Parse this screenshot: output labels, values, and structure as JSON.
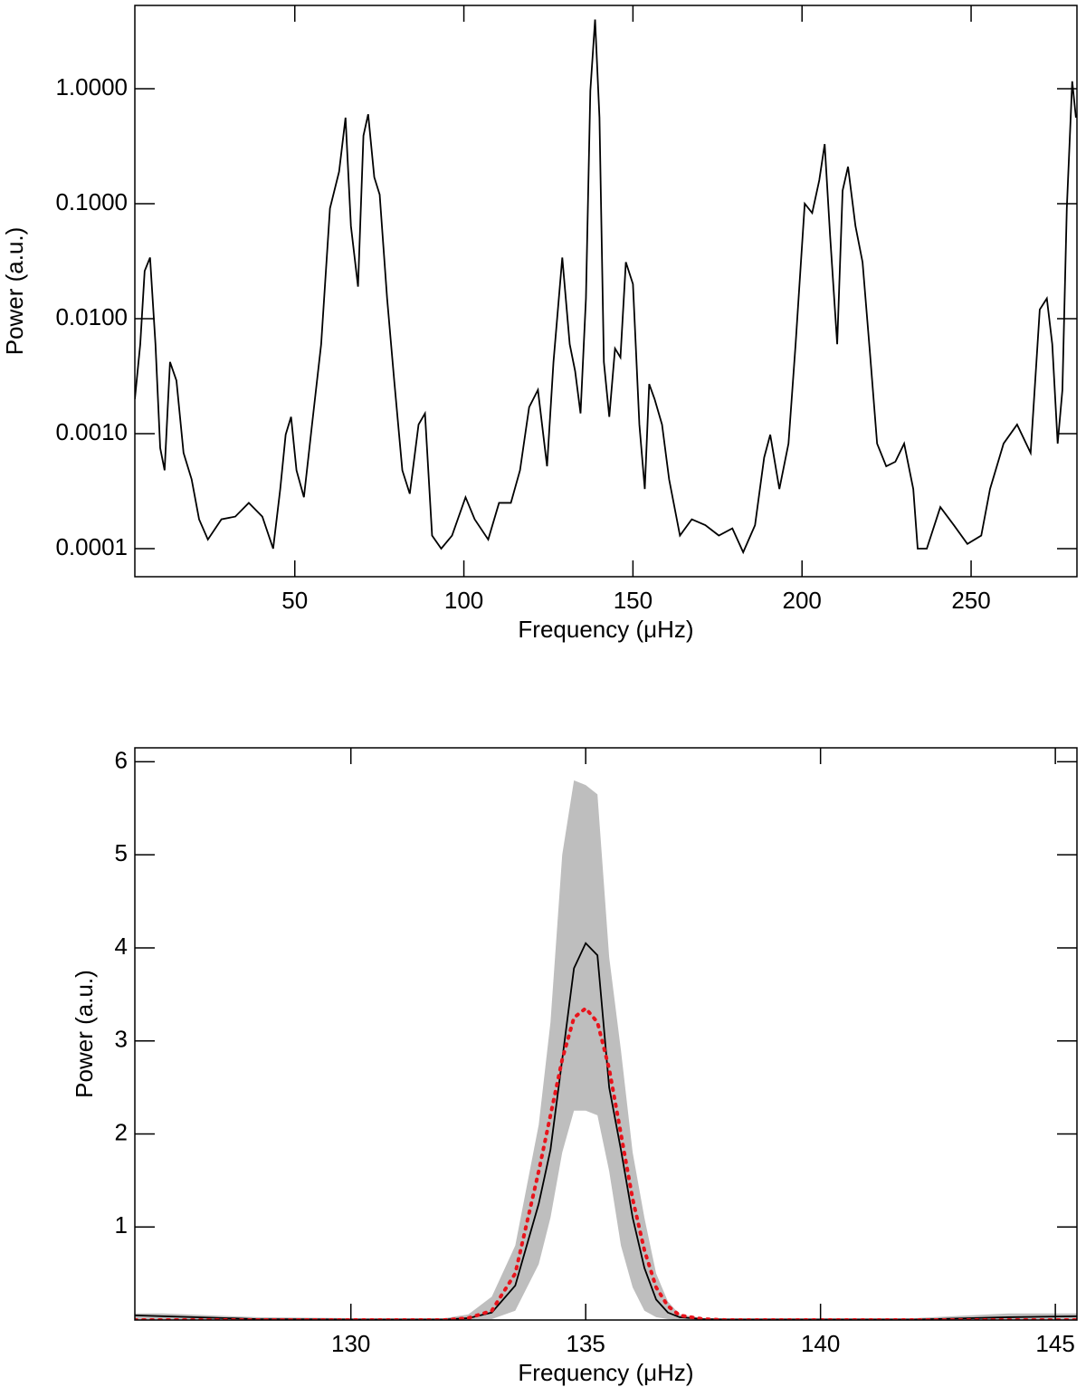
{
  "chart_data": [
    {
      "type": "line",
      "xlabel": "Frequency (μHz)",
      "ylabel": "Power (a.u.)",
      "ylog": true,
      "xlim": [
        2.7,
        281.3
      ],
      "ylim": [
        5.7e-05,
        5.3
      ],
      "xticks": [
        50,
        100,
        150,
        200,
        250
      ],
      "yticks": [
        0.0001,
        {
          "value": 0.001,
          "label": "0.0010"
        },
        {
          "value": 0.01,
          "label": "0.0100"
        },
        {
          "value": 0.1,
          "label": "0.1000"
        },
        {
          "value": 1,
          "label": "1.0000"
        }
      ],
      "x": [
        2.7,
        4.3,
        5.6,
        7.2,
        8.8,
        10.2,
        11.5,
        13.1,
        15,
        17.1,
        19.5,
        21.7,
        24.3,
        28.3,
        32.4,
        36.4,
        40.4,
        43.6,
        45.7,
        47.3,
        48.9,
        50.5,
        52.7,
        55.1,
        57.8,
        60.4,
        63.1,
        65,
        66.6,
        68.7,
        70.3,
        71.7,
        73.5,
        75.1,
        77.3,
        79.4,
        81.8,
        84,
        86.6,
        88.5,
        90.6,
        93.3,
        96.5,
        100.5,
        103.2,
        107.2,
        110.4,
        113.9,
        116.6,
        119.3,
        121.9,
        124.6,
        126.5,
        129.1,
        131.3,
        132.9,
        134.5,
        136.1,
        137.4,
        138.8,
        140.1,
        141.4,
        143,
        144.7,
        146.3,
        147.9,
        150,
        151.9,
        153.5,
        154.8,
        156.4,
        158.6,
        160.7,
        163.9,
        167.4,
        171.4,
        175.4,
        179.4,
        182.6,
        186.1,
        188.8,
        190.6,
        193.3,
        196,
        198.1,
        200.8,
        203,
        205.1,
        206.7,
        208.3,
        210.4,
        212,
        213.6,
        215.8,
        217.9,
        220.1,
        222.2,
        224.9,
        227.6,
        230.2,
        232.9,
        234.2,
        236.9,
        240.9,
        244.9,
        248.9,
        253,
        255.6,
        259.6,
        263.6,
        267.6,
        270.3,
        272.4,
        274,
        275.6,
        277,
        278.3,
        279.9,
        281
      ],
      "series": [
        {
          "color": "#000000",
          "values": [
            0.002,
            0.006,
            0.026,
            0.034,
            0.006,
            0.00075,
            0.00048,
            0.0042,
            0.0029,
            0.00068,
            0.0004,
            0.00018,
            0.00012,
            0.00018,
            0.00019,
            0.00025,
            0.00019,
            0.0001,
            0.00033,
            0.00098,
            0.0014,
            0.00048,
            0.00028,
            0.0012,
            0.006,
            0.091,
            0.19,
            0.56,
            0.064,
            0.019,
            0.39,
            0.6,
            0.17,
            0.12,
            0.015,
            0.0029,
            0.00048,
            0.0003,
            0.0012,
            0.0015,
            0.00013,
            0.0001,
            0.00013,
            0.00028,
            0.00018,
            0.00012,
            0.00025,
            0.00025,
            0.00048,
            0.0017,
            0.0024,
            0.00052,
            0.0042,
            0.034,
            0.006,
            0.0035,
            0.0015,
            0.015,
            0.96,
            4.0,
            0.56,
            0.0042,
            0.0014,
            0.0055,
            0.0046,
            0.031,
            0.02,
            0.0012,
            0.00033,
            0.0027,
            0.002,
            0.0012,
            0.0004,
            0.00013,
            0.00018,
            0.00016,
            0.00013,
            0.00015,
            9.3e-05,
            0.00016,
            0.00062,
            0.00098,
            0.00033,
            0.00082,
            0.006,
            0.1,
            0.083,
            0.16,
            0.33,
            0.053,
            0.006,
            0.13,
            0.21,
            0.064,
            0.031,
            0.005,
            0.00082,
            0.00052,
            0.00057,
            0.00082,
            0.00033,
            0.0001,
            0.0001,
            0.00023,
            0.00016,
            0.00011,
            0.00013,
            0.00033,
            0.00082,
            0.0012,
            0.00068,
            0.012,
            0.015,
            0.006,
            0.00082,
            0.0024,
            0.091,
            1.16,
            0.56
          ]
        }
      ]
    },
    {
      "type": "line",
      "xlabel": "Frequency (μHz)",
      "ylabel": "Power (a.u.)",
      "ylog": false,
      "xlim": [
        125.4,
        145.46
      ],
      "ylim": [
        0,
        6.15
      ],
      "xticks": [
        130,
        135,
        140,
        145
      ],
      "yticks": [
        1,
        2,
        3,
        4,
        5,
        6
      ],
      "x": [
        125.4,
        126,
        128,
        130,
        131,
        132,
        132.5,
        133,
        133.5,
        134,
        134.25,
        134.5,
        134.75,
        135,
        135.25,
        135.5,
        135.75,
        136,
        136.25,
        136.5,
        136.75,
        137,
        137.5,
        138,
        140,
        142,
        144,
        145.46
      ],
      "band": {
        "color": "#bebebe",
        "upper": [
          0.07,
          0.07,
          0.03,
          0.02,
          0.02,
          0.02,
          0.06,
          0.25,
          0.8,
          2.1,
          3.2,
          5.0,
          5.8,
          5.75,
          5.65,
          3.9,
          2.9,
          1.8,
          1.1,
          0.5,
          0.2,
          0.06,
          0.02,
          0.02,
          0.02,
          0.02,
          0.07,
          0.07
        ],
        "lower": [
          0,
          0,
          0,
          0,
          0,
          0,
          0,
          0.01,
          0.1,
          0.6,
          1.1,
          1.8,
          2.25,
          2.25,
          2.2,
          1.6,
          0.8,
          0.35,
          0.1,
          0.03,
          0.01,
          0,
          0,
          0,
          0,
          0,
          0,
          0
        ]
      },
      "series": [
        {
          "color": "#000000",
          "values": [
            0.05,
            0.04,
            0.01,
            0.005,
            0.005,
            0.005,
            0.02,
            0.08,
            0.37,
            1.25,
            1.83,
            2.8,
            3.78,
            4.05,
            3.92,
            2.5,
            1.83,
            1.1,
            0.56,
            0.22,
            0.08,
            0.03,
            0.01,
            0.005,
            0.005,
            0.005,
            0.03,
            0.04
          ]
        },
        {
          "color": "#e8141c",
          "dash": "dotted",
          "values": [
            0,
            0,
            0,
            0,
            0,
            0,
            0.02,
            0.1,
            0.5,
            1.6,
            2.2,
            2.8,
            3.25,
            3.35,
            3.2,
            2.7,
            2.0,
            1.3,
            0.75,
            0.35,
            0.15,
            0.05,
            0.01,
            0,
            0,
            0,
            0,
            0
          ]
        }
      ]
    }
  ]
}
